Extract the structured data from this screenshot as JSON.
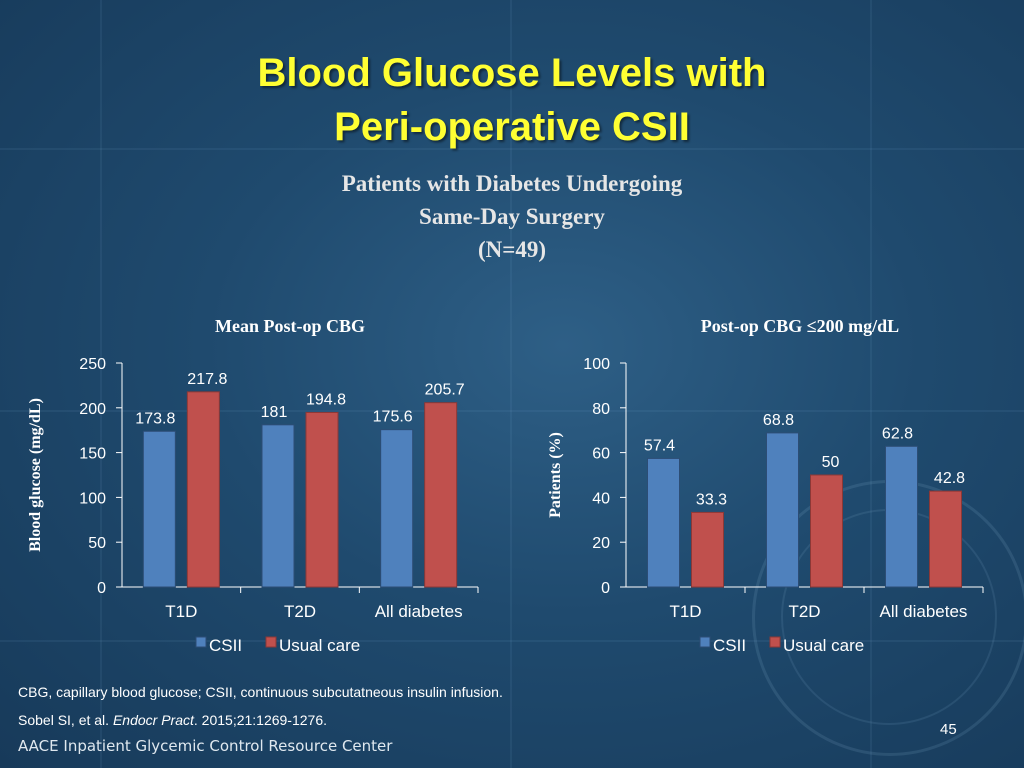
{
  "slide": {
    "title_line1": "Blood Glucose Levels with",
    "title_line2": "Peri-operative CSII",
    "subtitle_line1": "Patients with Diabetes Undergoing",
    "subtitle_line2": "Same-Day Surgery",
    "subtitle_line3": "(N=49)",
    "footnote1": "CBG, capillary blood glucose; CSII, continuous subcutatneous insulin infusion.",
    "footnote2_prefix": "Sobel SI, et al. ",
    "footnote2_journal": "Endocr Pract",
    "footnote2_suffix": ". 2015;21:1269-1276.",
    "footer": "AACE Inpatient Glycemic Control Resource Center",
    "page_number": "45",
    "colors": {
      "title": "#ffff33",
      "csii": "#4f81bd",
      "usual_care": "#c0504d"
    }
  },
  "chart_data": [
    {
      "type": "bar",
      "title": "Mean Post-op CBG",
      "ylabel": "Blood glucose (mg/dL)",
      "ylim": [
        0,
        250
      ],
      "yticks": [
        0,
        50,
        100,
        150,
        200,
        250
      ],
      "categories": [
        "T1D",
        "T2D",
        "All diabetes"
      ],
      "series": [
        {
          "name": "CSII",
          "values": [
            173.8,
            181,
            175.6
          ],
          "labels": [
            "173.8",
            "181",
            "175.6"
          ]
        },
        {
          "name": "Usual care",
          "values": [
            217.8,
            194.8,
            205.7
          ],
          "labels": [
            "217.8",
            "194.8",
            "205.7"
          ]
        }
      ],
      "legend": "bottom"
    },
    {
      "type": "bar",
      "title": "Post-op CBG ≤200 mg/dL",
      "ylabel": "Patients (%)",
      "ylim": [
        0,
        100
      ],
      "yticks": [
        0,
        20,
        40,
        60,
        80,
        100
      ],
      "categories": [
        "T1D",
        "T2D",
        "All diabetes"
      ],
      "series": [
        {
          "name": "CSII",
          "values": [
            57.4,
            68.8,
            62.8
          ],
          "labels": [
            "57.4",
            "68.8",
            "62.8"
          ]
        },
        {
          "name": "Usual care",
          "values": [
            33.3,
            50,
            42.8
          ],
          "labels": [
            "33.3",
            "50",
            "42.8"
          ]
        }
      ],
      "legend": "bottom"
    }
  ]
}
